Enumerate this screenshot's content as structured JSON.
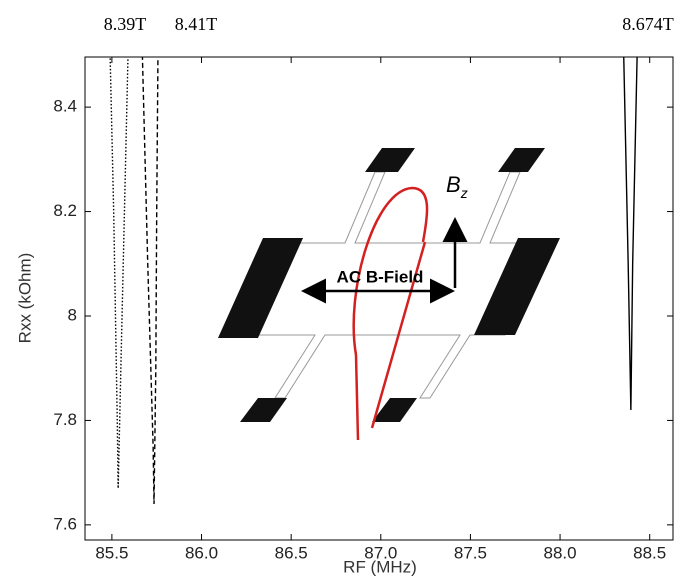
{
  "chart_data": {
    "type": "line",
    "xlabel": "RF (MHz)",
    "ylabel": "Rxx (kOhm)",
    "top_labels": [
      "8.39T",
      "8.41T",
      "8.674T"
    ],
    "inset": {
      "label": "AC B-Field",
      "field": "B",
      "field_sub": "z"
    },
    "xlim": [
      85.35,
      88.63
    ],
    "ylim": [
      7.571,
      8.496
    ],
    "xticks": [
      85.5,
      {
        "value": 86,
        "label": "86.0"
      },
      86.5,
      {
        "value": 87,
        "label": "87.0"
      },
      87.5,
      {
        "value": 88,
        "label": "88.0"
      },
      88.5
    ],
    "yticks": [
      7.6,
      7.8,
      8,
      8.2,
      8.4
    ],
    "series": [
      {
        "color": "#000000",
        "dash": "1.5,2",
        "x": [
          85.49,
          85.51,
          85.53,
          85.535,
          85.55,
          85.57,
          85.59
        ],
        "values": [
          8.5,
          8.2,
          7.8,
          7.67,
          7.9,
          8.2,
          8.5
        ]
      },
      {
        "color": "#000000",
        "dash": "5,3",
        "x": [
          85.67,
          85.7,
          85.73,
          85.735,
          85.745,
          85.75,
          85.757
        ],
        "values": [
          8.5,
          8.1,
          7.75,
          7.64,
          7.9,
          8.2,
          8.5
        ]
      },
      {
        "color": "#000000",
        "dash": "none",
        "x": [
          88.355,
          88.38,
          88.395,
          88.405,
          88.43
        ],
        "values": [
          8.5,
          8.1,
          7.82,
          8.1,
          8.5
        ]
      }
    ]
  }
}
